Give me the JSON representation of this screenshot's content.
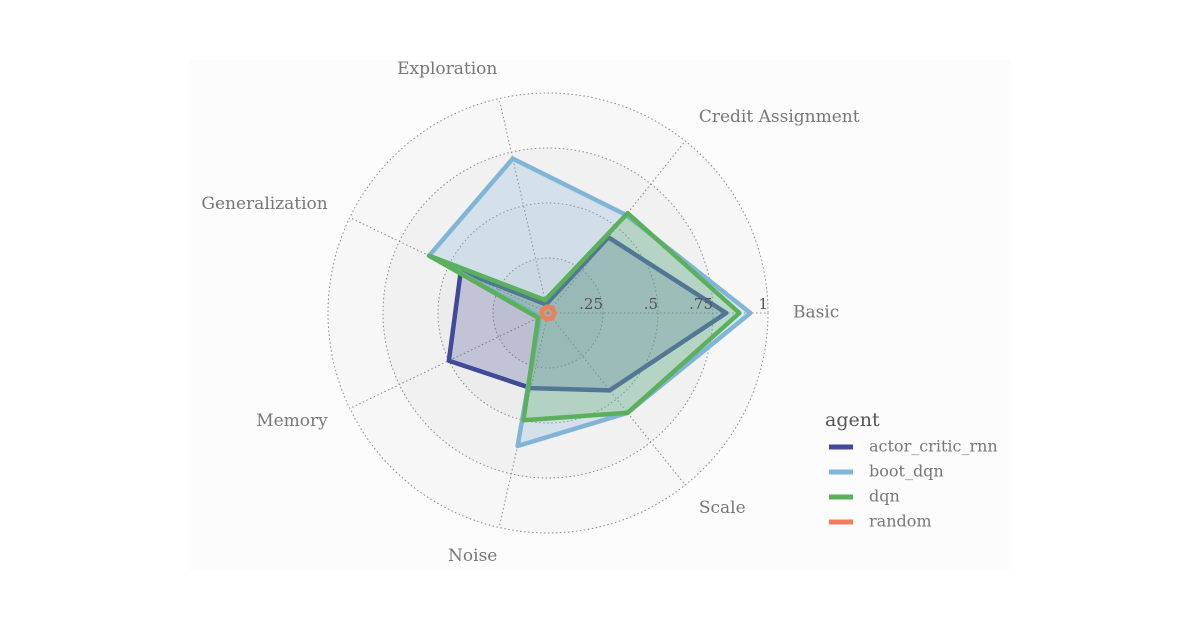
{
  "chart_data": {
    "type": "radar",
    "categories": [
      "Basic",
      "Credit Assignment",
      "Exploration",
      "Generalization",
      "Memory",
      "Noise",
      "Scale"
    ],
    "series": [
      {
        "name": "actor_critic_rnn",
        "color": "#3f4a98",
        "values": [
          0.81,
          0.44,
          0.04,
          0.44,
          0.5,
          0.35,
          0.45
        ]
      },
      {
        "name": "boot_dqn",
        "color": "#80b5d8",
        "values": [
          0.92,
          0.57,
          0.72,
          0.6,
          0.04,
          0.62,
          0.58
        ]
      },
      {
        "name": "dqn",
        "color": "#5bb05c",
        "values": [
          0.87,
          0.58,
          0.06,
          0.6,
          0.05,
          0.5,
          0.58
        ]
      },
      {
        "name": "random",
        "color": "#ee7f5c",
        "values": [
          0.03,
          0.03,
          0.03,
          0.03,
          0.03,
          0.03,
          0.03
        ]
      }
    ],
    "rlim": [
      0,
      1
    ],
    "rticks": [
      {
        "value": 0.25,
        "label": ".25"
      },
      {
        "value": 0.5,
        "label": ".5"
      },
      {
        "value": 0.75,
        "label": ".75"
      },
      1
    ],
    "legend_title": "agent",
    "legend_position": "right"
  }
}
